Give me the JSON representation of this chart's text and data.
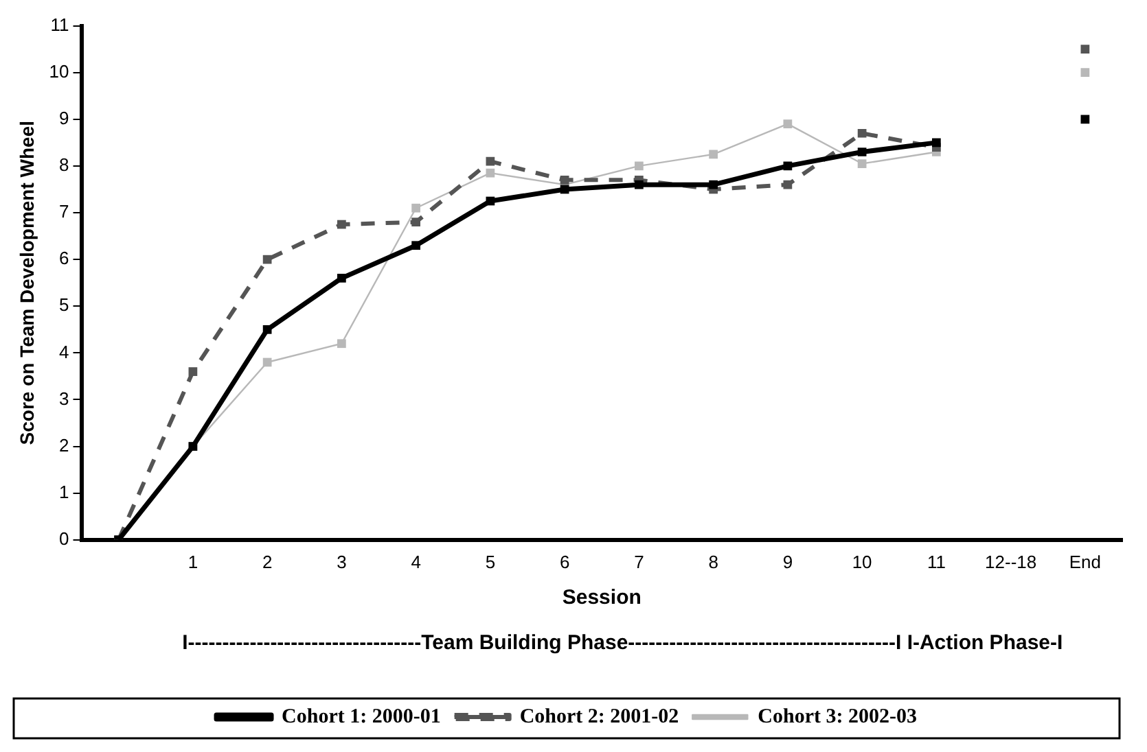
{
  "chart_data": {
    "type": "line",
    "xlabel": "Session",
    "ylabel": "Score on Team Development Wheel",
    "categories": [
      null,
      "1",
      "2",
      "3",
      "4",
      "5",
      "6",
      "7",
      "8",
      "9",
      "10",
      "11",
      "12--18",
      "End"
    ],
    "series": [
      {
        "name": "Cohort 1: 2000-01",
        "color": "#000000",
        "line_style": "solid",
        "values": [
          0,
          2.0,
          4.5,
          5.6,
          6.3,
          7.25,
          7.5,
          7.6,
          7.6,
          8.0,
          8.3,
          8.5,
          null,
          9.0
        ]
      },
      {
        "name": "Cohort 2: 2001-02",
        "color": "#555555",
        "line_style": "dashed",
        "values": [
          0,
          3.6,
          6.0,
          6.75,
          6.8,
          8.1,
          7.7,
          7.7,
          7.5,
          7.6,
          8.7,
          8.4,
          null,
          10.5
        ]
      },
      {
        "name": "Cohort 3: 2002-03",
        "color": "#b8b8b8",
        "line_style": "solid",
        "values": [
          0,
          2.0,
          3.8,
          4.2,
          7.1,
          7.85,
          7.6,
          8.0,
          8.25,
          8.9,
          8.05,
          8.3,
          null,
          10.0
        ]
      }
    ],
    "ylim": [
      0,
      11
    ],
    "yticks": [
      0,
      1,
      2,
      3,
      4,
      5,
      6,
      7,
      8,
      9,
      10,
      11
    ],
    "grid": false,
    "legend": "bottom",
    "marker": "square",
    "annotations": [
      "I----------------------------------Team Building Phase---------------------------------------I I-Action Phase-I"
    ]
  }
}
